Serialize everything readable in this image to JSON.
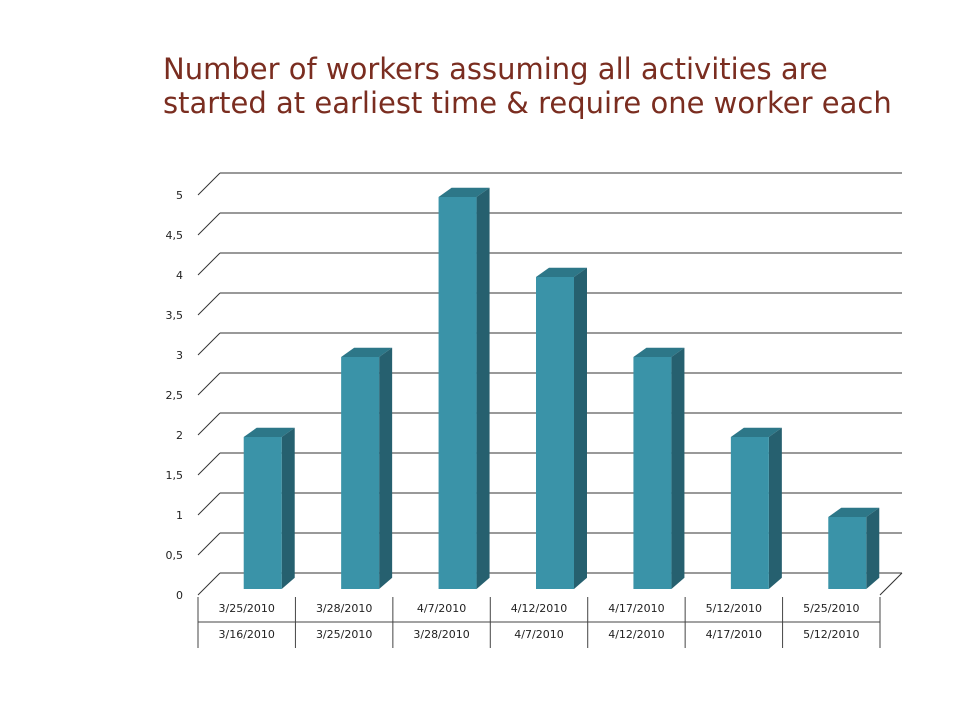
{
  "slide": {
    "title_line1": "Number of workers assuming all activities are",
    "title_line2": "started at earliest time & require one worker each"
  },
  "colors": {
    "title": "#7a2d20",
    "bar_front": "#3a93a8",
    "bar_side": "#26606f",
    "bar_top": "#2d7788",
    "gridline": "#333333"
  },
  "chart_data": {
    "type": "bar",
    "three_d": true,
    "title": "",
    "xlabel": "",
    "ylabel": "",
    "ylim": [
      0,
      5
    ],
    "ytick_step": 0.5,
    "ytick_labels": [
      "0",
      "0,5",
      "1",
      "1,5",
      "2",
      "2,5",
      "3",
      "3,5",
      "4",
      "4,5",
      "5"
    ],
    "grid": true,
    "legend": "none",
    "category_levels": [
      [
        "3/25/2010",
        "3/28/2010",
        "4/7/2010",
        "4/12/2010",
        "4/17/2010",
        "5/12/2010",
        "5/25/2010"
      ],
      [
        "3/16/2010",
        "3/25/2010",
        "3/28/2010",
        "4/7/2010",
        "4/12/2010",
        "4/17/2010",
        "5/12/2010"
      ]
    ],
    "values": [
      2,
      3,
      5,
      4,
      3,
      2,
      1
    ]
  }
}
